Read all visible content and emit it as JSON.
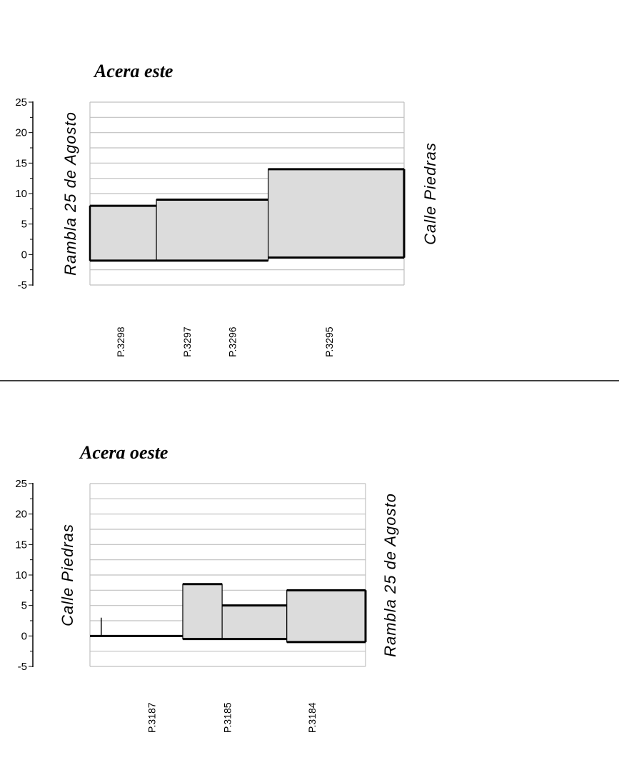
{
  "chart_data": [
    {
      "type": "area",
      "title": "Acera este",
      "ylim": [
        -5,
        25
      ],
      "y_ticks": [
        25,
        20,
        15,
        10,
        5,
        0,
        -5
      ],
      "grid": true,
      "left_label": "Rambla 25 de Agosto",
      "right_label": "Calle Piedras",
      "parcels": [
        "P.3298",
        "P.3297",
        "P.3296",
        "P.3295"
      ],
      "x_ticks": [
        0,
        22,
        37,
        69
      ],
      "x_range": [
        0,
        104
      ],
      "segments": [
        {
          "x0": 0,
          "x1": 22,
          "top": 8,
          "bottom": -1
        },
        {
          "x0": 22,
          "x1": 59,
          "top": 9,
          "bottom": -1
        },
        {
          "x0": 59,
          "x1": 104,
          "top": 14,
          "bottom": -0.5
        }
      ]
    },
    {
      "type": "area",
      "title": "Acera oeste",
      "ylim": [
        -5,
        25
      ],
      "y_ticks": [
        25,
        20,
        15,
        10,
        5,
        0,
        -5
      ],
      "grid": true,
      "left_label": "Calle Piedras",
      "right_label": "Rambla 25 de Agosto",
      "parcels": [
        "P.3187",
        "P.3185",
        "P.3184"
      ],
      "x_ticks": [
        11,
        38,
        68
      ],
      "x_range": [
        0,
        98
      ],
      "marker": {
        "x": 4,
        "top": 3,
        "bottom": 0
      },
      "segments": [
        {
          "x0": 0,
          "x1": 33,
          "top": 0,
          "bottom": 0
        },
        {
          "x0": 33,
          "x1": 47,
          "top": 8.5,
          "bottom": -0.5
        },
        {
          "x0": 47,
          "x1": 70,
          "top": 5,
          "bottom": -0.5
        },
        {
          "x0": 70,
          "x1": 98,
          "top": 7.5,
          "bottom": -1
        }
      ]
    }
  ]
}
